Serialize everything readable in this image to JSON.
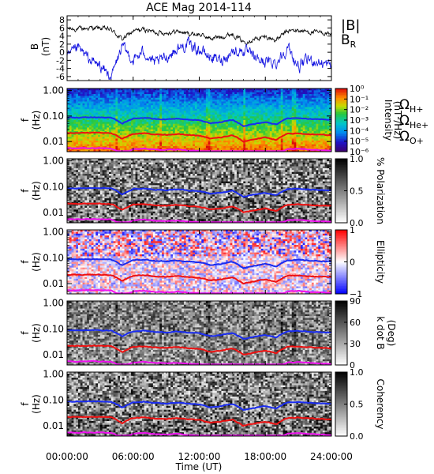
{
  "chart_data": {
    "title": "ACE Mag 2014-114",
    "type": "multi-panel",
    "x_axis": {
      "label": "Time (UT)",
      "range": [
        "00:00:00",
        "24:00:00"
      ],
      "ticks": [
        "00:00:00",
        "06:00:00",
        "12:00:00",
        "18:00:00",
        "24:00:00"
      ]
    },
    "colors": {
      "total_field": "#000000",
      "radial": "#1010e0",
      "h_plus": "#1a2cf0",
      "he_plus": "#ee1111",
      "o_plus": "#ee11ee"
    },
    "panels": [
      {
        "type": "line",
        "ylabel": "B",
        "yunit": "(nT)",
        "ylim": [
          -7,
          9
        ],
        "yticks": [
          "8",
          "6",
          "4",
          "2",
          "0",
          "-2",
          "-4",
          "-6"
        ],
        "series": [
          {
            "name": "|B|",
            "x_hours": [
              0,
              1,
              2,
              3,
              4,
              5,
              6,
              7,
              8,
              9,
              10,
              11,
              12,
              13,
              14,
              15,
              16,
              17,
              18,
              19,
              20,
              21,
              22,
              23,
              24
            ],
            "values": [
              5.8,
              5.7,
              6.0,
              5.9,
              5.6,
              3.2,
              5.2,
              5.6,
              5.0,
              4.8,
              5.2,
              4.6,
              4.4,
              3.4,
              3.8,
              4.6,
              2.6,
              3.2,
              3.8,
              3.0,
              5.2,
              5.4,
              5.0,
              4.8,
              4.6
            ]
          },
          {
            "name": "B",
            "subscript": "R",
            "x_hours": [
              0,
              1,
              2,
              3,
              4,
              5,
              6,
              7,
              8,
              9,
              10,
              11,
              12,
              13,
              14,
              15,
              16,
              17,
              18,
              19,
              20,
              21,
              22,
              23,
              24
            ],
            "values": [
              -1.5,
              1.0,
              -1.8,
              -3.4,
              -6.2,
              1.4,
              -2.0,
              0.2,
              -3.0,
              -1.2,
              0.8,
              2.0,
              0.6,
              -1.2,
              -2.0,
              0.2,
              0.4,
              -1.4,
              -2.4,
              -2.6,
              1.2,
              -3.6,
              -1.8,
              -2.6,
              -3.4
            ]
          }
        ]
      },
      {
        "type": "spectrogram",
        "ylabel": "f",
        "yunit": "(Hz)",
        "yscale": "log",
        "ylim": [
          0.004,
          1.2
        ],
        "yticks": [
          "1.00",
          "0.10",
          "0.01"
        ],
        "colorbar": {
          "label": "Intensity",
          "unit": "(nT²/Hz)",
          "scale": "log",
          "ticks": [
            "10⁰",
            "10⁻¹",
            "10⁻²",
            "10⁻³",
            "10⁻⁴",
            "10⁻⁵",
            "10⁻⁶"
          ]
        },
        "legend": [
          {
            "symbol": "Ω",
            "sub": "H+"
          },
          {
            "symbol": "Ω",
            "sub": "He+"
          },
          {
            "symbol": "Ω",
            "sub": "O+"
          }
        ]
      },
      {
        "type": "spectrogram",
        "ylabel": "f",
        "yunit": "(Hz)",
        "yscale": "log",
        "ylim": [
          0.004,
          1.2
        ],
        "yticks": [
          "1.00",
          "0.10",
          "0.01"
        ],
        "colorbar": {
          "label": "% Polarization",
          "unit": "",
          "scale": "linear",
          "range": [
            0,
            1
          ],
          "ticks": [
            "1.0",
            "0.5",
            "0.0"
          ]
        }
      },
      {
        "type": "spectrogram",
        "ylabel": "f",
        "yunit": "(Hz)",
        "yscale": "log",
        "ylim": [
          0.004,
          1.2
        ],
        "yticks": [
          "1.00",
          "0.10",
          "0.01"
        ],
        "colorbar": {
          "label": "Ellipticity",
          "unit": "",
          "scale": "linear",
          "range": [
            -1,
            1
          ],
          "ticks": [
            "1",
            "0",
            "−1"
          ]
        }
      },
      {
        "type": "spectrogram",
        "ylabel": "f",
        "yunit": "(Hz)",
        "yscale": "log",
        "ylim": [
          0.004,
          1.2
        ],
        "yticks": [
          "1.00",
          "0.10",
          "0.01"
        ],
        "colorbar": {
          "label": "k dot B",
          "unit": "(Deg)",
          "scale": "linear",
          "range": [
            0,
            90
          ],
          "ticks": [
            "90",
            "60",
            "30",
            "0"
          ]
        }
      },
      {
        "type": "spectrogram",
        "ylabel": "f",
        "yunit": "(Hz)",
        "yscale": "log",
        "ylim": [
          0.004,
          1.2
        ],
        "yticks": [
          "1.00",
          "0.10",
          "0.01"
        ],
        "colorbar": {
          "label": "Coherency",
          "unit": "",
          "scale": "linear",
          "range": [
            0,
            1
          ],
          "ticks": [
            "1.0",
            "0.5",
            "0.0"
          ]
        }
      }
    ],
    "gyrofrequency_curves": {
      "x_hours": [
        0,
        1,
        2,
        3,
        4,
        5,
        6,
        7,
        8,
        9,
        10,
        11,
        12,
        13,
        14,
        15,
        16,
        17,
        18,
        19,
        20,
        21,
        22,
        23,
        24
      ],
      "H+_Hz": [
        0.088,
        0.087,
        0.089,
        0.088,
        0.086,
        0.05,
        0.08,
        0.085,
        0.076,
        0.073,
        0.079,
        0.071,
        0.068,
        0.052,
        0.058,
        0.07,
        0.04,
        0.049,
        0.058,
        0.046,
        0.08,
        0.083,
        0.077,
        0.074,
        0.071
      ],
      "He+_Hz": [
        0.022,
        0.0218,
        0.0223,
        0.022,
        0.0215,
        0.0125,
        0.02,
        0.0213,
        0.019,
        0.0183,
        0.0198,
        0.0178,
        0.017,
        0.013,
        0.0145,
        0.0175,
        0.01,
        0.0123,
        0.0145,
        0.0115,
        0.02,
        0.0208,
        0.0193,
        0.0185,
        0.0178
      ],
      "O+_Hz": [
        0.0055,
        0.0054,
        0.0056,
        0.0055,
        0.0054,
        0.0031,
        0.005,
        0.0053,
        0.0048,
        0.0046,
        0.0049,
        0.0044,
        0.0043,
        0.0033,
        0.0036,
        0.0044,
        0.0025,
        0.0031,
        0.0036,
        0.0029,
        0.005,
        0.0052,
        0.0048,
        0.0046,
        0.0044
      ]
    }
  }
}
